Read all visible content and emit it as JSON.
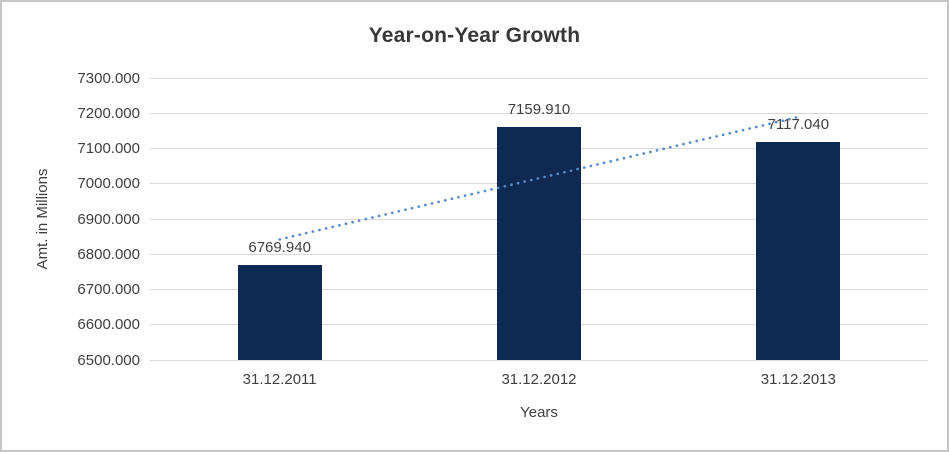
{
  "chart_data": {
    "type": "bar",
    "title": "Year-on-Year Growth",
    "xlabel": "Years",
    "ylabel": "Amt. in Millions",
    "categories": [
      "31.12.2011",
      "31.12.2012",
      "31.12.2013"
    ],
    "values": [
      6769.94,
      7159.91,
      7117.04
    ],
    "data_labels": [
      "6769.940",
      "7159.910",
      "7117.040"
    ],
    "ylim": [
      6500,
      7300
    ],
    "ytick_step": 100,
    "ytick_labels": [
      "7300.000",
      "7200.000",
      "7100.000",
      "7000.000",
      "6900.000",
      "6800.000",
      "6700.000",
      "6600.000",
      "6500.000"
    ],
    "grid": true,
    "legend_position": "none",
    "bar_color": "#0e2a52",
    "gridline_color": "#d9d9d9",
    "text_color": "#404040",
    "trendline": {
      "type": "linear",
      "style": "dotted",
      "color": "#5a8ac6"
    }
  }
}
